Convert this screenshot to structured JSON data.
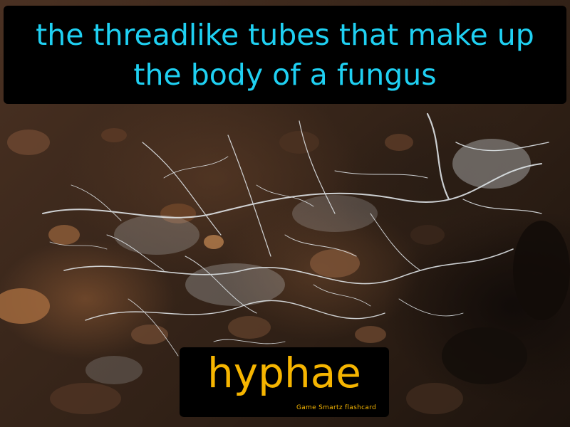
{
  "flashcard": {
    "definition": "the threadlike tubes that make up the body of a fungus",
    "term": "hyphae",
    "brand": "Game Smartz flashcard"
  },
  "photo": {
    "subject": "white fungal hyphae spreading over dark soil"
  },
  "colors": {
    "definition_text": "#1fd0f2",
    "term_text": "#f6b500",
    "box_background": "#000000",
    "soil_dark": "#2a1d14",
    "hyphae": "#e8eef2"
  }
}
